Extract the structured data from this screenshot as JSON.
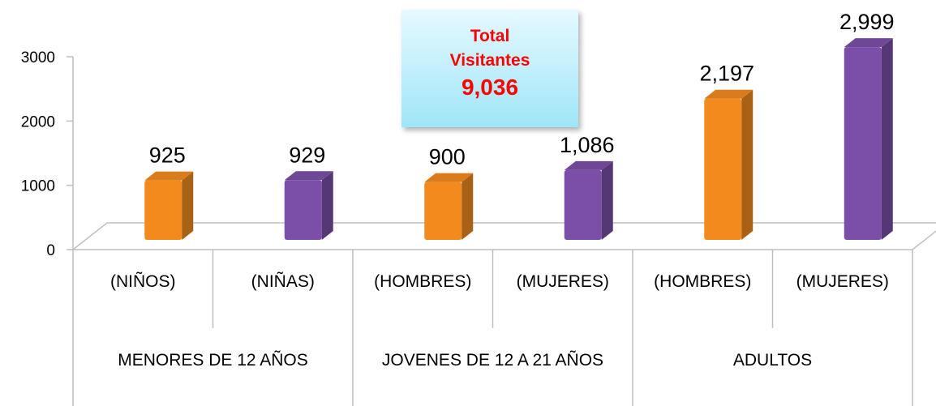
{
  "chart_data": {
    "type": "bar3d",
    "groups": [
      {
        "name": "MENORES DE 12 AÑOS",
        "categories": [
          "(NIÑOS)",
          "(NIÑAS)"
        ]
      },
      {
        "name": "JOVENES DE 12 A 21 AÑOS",
        "categories": [
          "(HOMBRES)",
          "(MUJERES)"
        ]
      },
      {
        "name": "ADULTOS",
        "categories": [
          "(HOMBRES)",
          "(MUJERES)"
        ]
      }
    ],
    "values": [
      925,
      929,
      900,
      1086,
      2197,
      2999
    ],
    "value_labels": [
      "925",
      "929",
      "900",
      "1,086",
      "2,197",
      "2,999"
    ],
    "colors": [
      "#f28a1e",
      "#7b4fa8",
      "#f28a1e",
      "#7b4fa8",
      "#f28a1e",
      "#7b4fa8"
    ],
    "ylim": [
      0,
      3000
    ],
    "yticks": [
      0,
      1000,
      2000,
      3000
    ],
    "annotation": {
      "text": "Total Visitantes",
      "value": 9036,
      "label": "9,036"
    }
  }
}
